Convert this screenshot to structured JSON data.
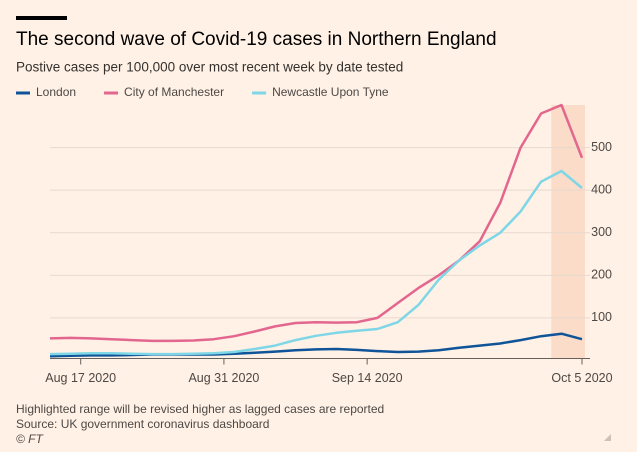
{
  "chart_data": {
    "type": "line",
    "title": "The second wave of Covid-19 cases in Northern England",
    "subtitle": "Postive cases per 100,000 over most recent week by date tested",
    "x": [
      "2020-08-14",
      "2020-08-16",
      "2020-08-18",
      "2020-08-20",
      "2020-08-22",
      "2020-08-24",
      "2020-08-26",
      "2020-08-28",
      "2020-08-30",
      "2020-09-01",
      "2020-09-03",
      "2020-09-05",
      "2020-09-07",
      "2020-09-09",
      "2020-09-11",
      "2020-09-13",
      "2020-09-15",
      "2020-09-17",
      "2020-09-19",
      "2020-09-21",
      "2020-09-23",
      "2020-09-25",
      "2020-09-27",
      "2020-09-29",
      "2020-10-01",
      "2020-10-03",
      "2020-10-05"
    ],
    "series": [
      {
        "name": "London",
        "color": "#0f5499",
        "values": [
          10,
          11,
          12,
          12,
          13,
          14,
          14,
          14,
          14,
          16,
          18,
          21,
          24,
          26,
          27,
          25,
          22,
          20,
          21,
          24,
          30,
          35,
          40,
          48,
          57,
          63,
          50
        ]
      },
      {
        "name": "City of Manchester",
        "color": "#e3668f",
        "values": [
          52,
          53,
          52,
          50,
          48,
          46,
          46,
          47,
          50,
          57,
          68,
          80,
          88,
          90,
          89,
          90,
          100,
          135,
          170,
          200,
          235,
          280,
          370,
          500,
          580,
          600,
          476
        ]
      },
      {
        "name": "Newcastle Upon Tyne",
        "color": "#7fd6e6",
        "values": [
          15,
          16,
          17,
          17,
          16,
          15,
          15,
          16,
          17,
          20,
          27,
          35,
          48,
          58,
          65,
          70,
          74,
          90,
          130,
          190,
          235,
          270,
          300,
          350,
          420,
          445,
          405
        ]
      }
    ],
    "xlim": [
      "2020-08-14",
      "2020-10-05"
    ],
    "xticks": [
      {
        "value": "2020-08-17",
        "label": "Aug 17 2020"
      },
      {
        "value": "2020-08-31",
        "label": "Aug 31 2020"
      },
      {
        "value": "2020-09-14",
        "label": "Sep 14 2020"
      },
      {
        "value": "2020-10-05",
        "label": "Oct 5 2020"
      }
    ],
    "ylim": [
      0,
      600
    ],
    "yticks": [
      100,
      200,
      300,
      400,
      500
    ],
    "grid": true,
    "highlight": {
      "from": "2020-10-02",
      "to": "2020-10-05",
      "color": "#fbdcc8"
    },
    "notes": [
      "Highlighted range will be revised higher as lagged cases are reported",
      "Source: UK government coronavirus dashboard",
      "© FT"
    ]
  }
}
